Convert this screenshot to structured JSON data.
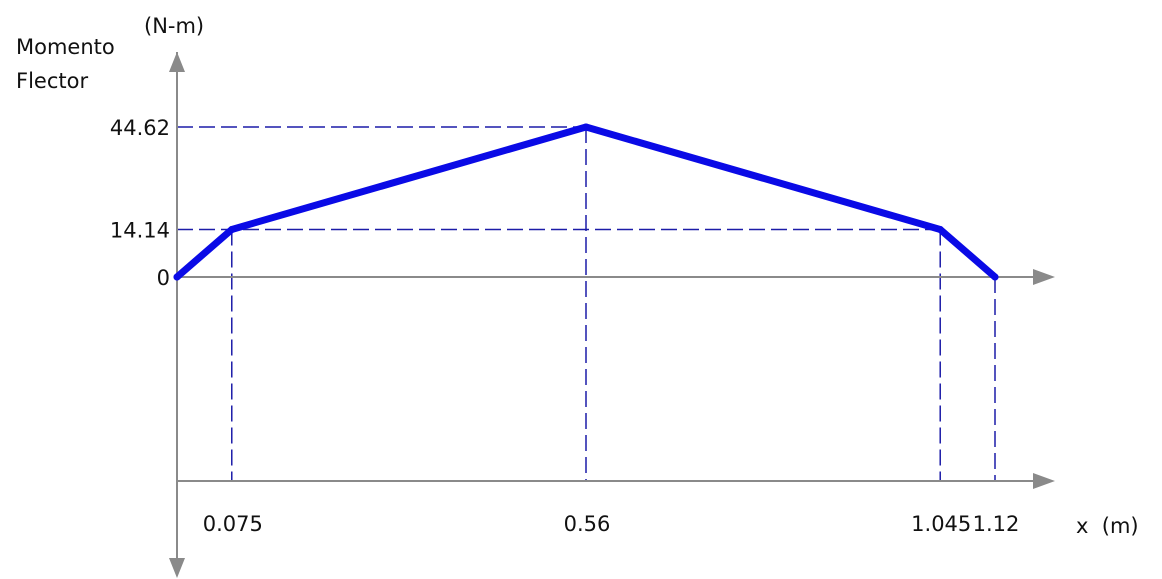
{
  "chart_data": {
    "type": "line",
    "ylabel": "Momento\nFlector",
    "yunit": "(N-m)",
    "xlabel": "x  (m)",
    "x_ticks": [
      "0.075",
      "0.56",
      "1.045",
      "1.12"
    ],
    "y_ticks": [
      "44.62",
      "14.14",
      "0"
    ],
    "series": [
      {
        "x": [
          0,
          0.075,
          0.56,
          1.045,
          1.12
        ],
        "y": [
          0,
          14.14,
          44.62,
          14.14,
          0
        ]
      }
    ],
    "xlim": [
      0,
      1.12
    ],
    "ylim": [
      0,
      44.62
    ],
    "colors": {
      "line": "#0a0ae6",
      "guide": "#1c1ca8",
      "axis": "#8a8a8a",
      "text": "#111111"
    }
  }
}
